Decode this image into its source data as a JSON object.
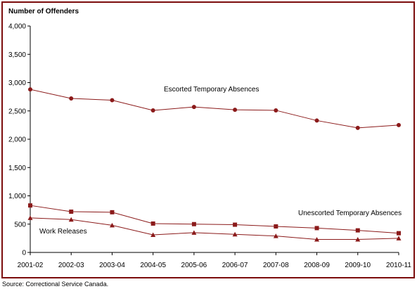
{
  "colors": {
    "frame": "#7b0c0c",
    "series": "#8b1a1a",
    "axis": "#000000"
  },
  "chart_data": {
    "type": "line",
    "title": "",
    "ylabel": "Number of Offenders",
    "xlabel": "",
    "categories": [
      "2001-02",
      "2002-03",
      "2003-04",
      "2004-05",
      "2005-06",
      "2006-07",
      "2007-08",
      "2008-09",
      "2009-10",
      "2010-11"
    ],
    "ylim": [
      0,
      4000
    ],
    "yticks": [
      "0",
      "500",
      "1,000",
      "1,500",
      "2,000",
      "2,500",
      "3,000",
      "3,500",
      "4,000"
    ],
    "grid": false,
    "legend": "none",
    "series": [
      {
        "name": "Escorted Temporary Absences",
        "marker": "circle",
        "values": [
          2880,
          2720,
          2690,
          2510,
          2570,
          2520,
          2510,
          2330,
          2200,
          2250
        ]
      },
      {
        "name": "Unescorted Temporary Absences",
        "marker": "square",
        "values": [
          830,
          720,
          710,
          510,
          500,
          490,
          460,
          430,
          390,
          340
        ]
      },
      {
        "name": "Work Releases",
        "marker": "triangle",
        "values": [
          610,
          580,
          480,
          310,
          350,
          320,
          290,
          230,
          230,
          250
        ]
      }
    ],
    "source": "Source:  Correctional Service Canada."
  }
}
